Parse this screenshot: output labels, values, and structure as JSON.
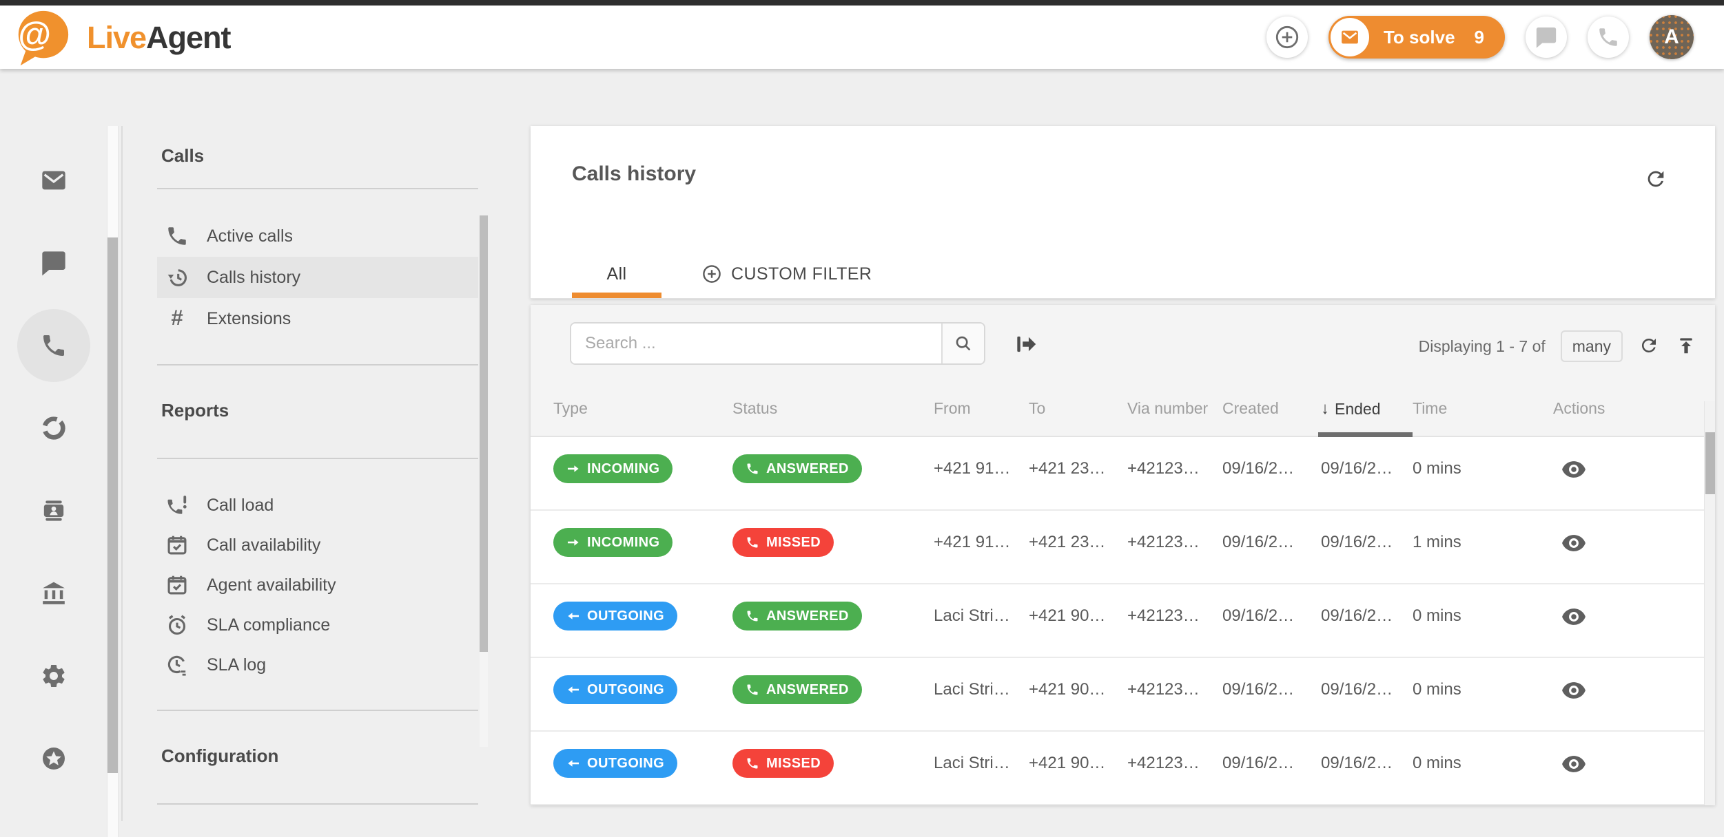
{
  "colors": {
    "INCOMING": "#4caf50",
    "OUTGOING": "#2e9cf3",
    "ANSWERED": "#4caf50",
    "MISSED": "#f4433a",
    "accent_orange": "#ee8c30"
  },
  "brand": {
    "live": "Live",
    "agent": "Agent"
  },
  "header": {
    "to_solve_label": "To solve",
    "to_solve_count": "9",
    "avatar_letter": "A",
    "icons": [
      "plus-circle-icon",
      "envelope-icon",
      "chat-bubble-icon",
      "phone-icon",
      "avatar"
    ]
  },
  "sidebar": {
    "items": [
      {
        "icon": "mail-icon",
        "active": false
      },
      {
        "icon": "chat-bubble-icon",
        "active": false
      },
      {
        "icon": "phone-icon",
        "active": true
      },
      {
        "icon": "reports-donut-icon",
        "active": false
      },
      {
        "icon": "contacts-card-icon",
        "active": false
      },
      {
        "icon": "bank-icon",
        "active": false
      },
      {
        "icon": "settings-gear-icon",
        "active": false
      },
      {
        "icon": "star-badge-icon",
        "active": false
      }
    ]
  },
  "nav": {
    "sections": [
      {
        "heading": "Calls",
        "items": [
          {
            "label": "Active calls",
            "icon": "phone-icon",
            "active": false
          },
          {
            "label": "Calls history",
            "icon": "history-icon",
            "active": true
          },
          {
            "label": "Extensions",
            "icon": "hash-icon",
            "active": false
          }
        ]
      },
      {
        "heading": "Reports",
        "items": [
          {
            "label": "Call load",
            "icon": "phone-alert-icon",
            "active": false
          },
          {
            "label": "Call availability",
            "icon": "calendar-check-icon",
            "active": false
          },
          {
            "label": "Agent availability",
            "icon": "calendar-check-icon",
            "active": false
          },
          {
            "label": "SLA compliance",
            "icon": "alarm-clock-icon",
            "active": false
          },
          {
            "label": "SLA log",
            "icon": "clock-refresh-icon",
            "active": false
          }
        ]
      },
      {
        "heading": "Configuration",
        "items": []
      }
    ]
  },
  "main": {
    "title": "Calls history",
    "tabs": [
      {
        "label": "All",
        "active": true
      },
      {
        "label": "CUSTOM FILTER",
        "icon": "plus-circle-icon",
        "active": false
      }
    ],
    "toolbar": {
      "search_placeholder": "Search ...",
      "displaying_text": "Displaying 1 - 7 of",
      "count_button": "many"
    },
    "table": {
      "columns": [
        {
          "key": "type",
          "label": "Type"
        },
        {
          "key": "status",
          "label": "Status"
        },
        {
          "key": "from",
          "label": "From"
        },
        {
          "key": "to",
          "label": "To"
        },
        {
          "key": "via",
          "label": "Via number"
        },
        {
          "key": "created",
          "label": "Created"
        },
        {
          "key": "ended",
          "label": "Ended",
          "sorted": "desc"
        },
        {
          "key": "time",
          "label": "Time"
        },
        {
          "key": "actions",
          "label": "Actions"
        }
      ],
      "rows": [
        {
          "type": "INCOMING",
          "status": "ANSWERED",
          "from": "+421 91…",
          "to": "+421 23…",
          "via": "+42123…",
          "created": "09/16/2…",
          "ended": "09/16/2…",
          "time": "0 mins"
        },
        {
          "type": "INCOMING",
          "status": "MISSED",
          "from": "+421 91…",
          "to": "+421 23…",
          "via": "+42123…",
          "created": "09/16/2…",
          "ended": "09/16/2…",
          "time": "1 mins"
        },
        {
          "type": "OUTGOING",
          "status": "ANSWERED",
          "from": "Laci Stri…",
          "to": "+421 90…",
          "via": "+42123…",
          "created": "09/16/2…",
          "ended": "09/16/2…",
          "time": "0 mins"
        },
        {
          "type": "OUTGOING",
          "status": "ANSWERED",
          "from": "Laci Stri…",
          "to": "+421 90…",
          "via": "+42123…",
          "created": "09/16/2…",
          "ended": "09/16/2…",
          "time": "0 mins"
        },
        {
          "type": "OUTGOING",
          "status": "MISSED",
          "from": "Laci Stri…",
          "to": "+421 90…",
          "via": "+42123…",
          "created": "09/16/2…",
          "ended": "09/16/2…",
          "time": "0 mins"
        }
      ]
    }
  }
}
